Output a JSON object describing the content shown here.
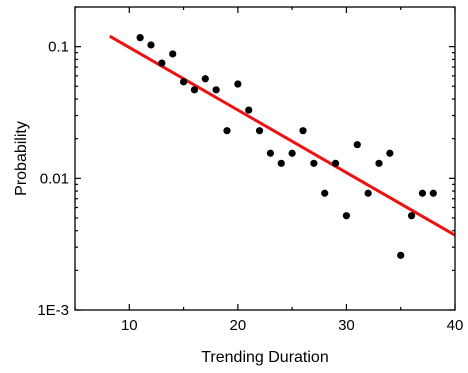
{
  "chart_data": {
    "type": "scatter",
    "title": "",
    "xlabel": "Trending Duration",
    "ylabel": "Probability",
    "xlim": [
      5,
      40
    ],
    "ylim": [
      0.001,
      0.2
    ],
    "yscale": "log",
    "x_ticks": [
      10,
      20,
      30,
      40
    ],
    "x_tick_labels": [
      "10",
      "20",
      "30",
      "40"
    ],
    "y_ticks": [
      0.1,
      0.01,
      0.001
    ],
    "y_tick_labels": [
      "0.1",
      "0.01",
      "1E-3"
    ],
    "grid": false,
    "legend": "none",
    "series": [
      {
        "kind": "points",
        "color": "#000000",
        "points": [
          [
            11,
            0.117
          ],
          [
            12,
            0.103
          ],
          [
            13,
            0.075
          ],
          [
            14,
            0.088
          ],
          [
            15,
            0.054
          ],
          [
            16,
            0.047
          ],
          [
            17,
            0.057
          ],
          [
            18,
            0.047
          ],
          [
            19,
            0.023
          ],
          [
            20,
            0.052
          ],
          [
            21,
            0.033
          ],
          [
            22,
            0.023
          ],
          [
            23,
            0.0155
          ],
          [
            24,
            0.013
          ],
          [
            25,
            0.0155
          ],
          [
            26,
            0.023
          ],
          [
            27,
            0.013
          ],
          [
            28,
            0.0077
          ],
          [
            29,
            0.013
          ],
          [
            30,
            0.0052
          ],
          [
            31,
            0.018
          ],
          [
            32,
            0.0077
          ],
          [
            33,
            0.013
          ],
          [
            34,
            0.0155
          ],
          [
            35,
            0.0026
          ],
          [
            36,
            0.0052
          ],
          [
            37,
            0.0077
          ],
          [
            38,
            0.0077
          ]
        ]
      },
      {
        "kind": "fit-line",
        "color": "#ee1111",
        "points": [
          [
            8.2,
            0.12
          ],
          [
            40,
            0.0037
          ]
        ]
      }
    ]
  }
}
